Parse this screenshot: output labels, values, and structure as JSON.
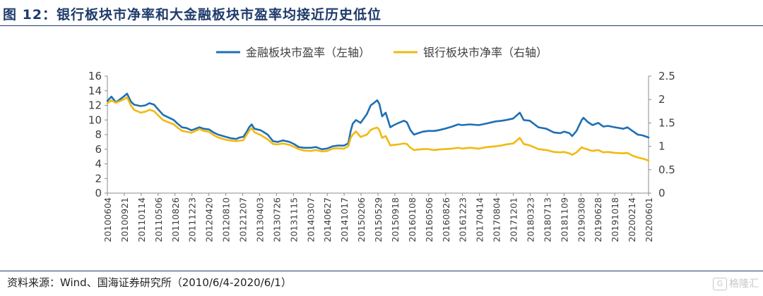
{
  "title": "图 12：银行板块市净率和大金融板块市盈率均接近历史低位",
  "source": "资料来源：Wind、国海证券研究所（2010/6/4-2020/6/1）",
  "watermark": {
    "text": "格隆汇",
    "box": "G"
  },
  "chart_data": {
    "type": "line",
    "legend_position": "top-center",
    "grid": false,
    "y_left": {
      "range": [
        0,
        16
      ],
      "ticks": [
        0,
        2,
        4,
        6,
        8,
        10,
        12,
        14,
        16
      ]
    },
    "y_right": {
      "range": [
        0,
        2.5
      ],
      "ticks": [
        "0",
        "0.5",
        "1",
        "1.5",
        "2",
        "2.5"
      ]
    },
    "x_tick_labels": [
      "20100604",
      "20100921",
      "20110114",
      "20110506",
      "20110826",
      "20111223",
      "20120420",
      "20120810",
      "20121207",
      "20130403",
      "20130726",
      "20131115",
      "20140307",
      "20140627",
      "20141017",
      "20150206",
      "20150529",
      "20150918",
      "20160108",
      "20160506",
      "20160826",
      "20161223",
      "20170414",
      "20170804",
      "20171201",
      "20180323",
      "20180713",
      "20181109",
      "20190308",
      "20190628",
      "20191018",
      "20200214",
      "20200601"
    ],
    "series": [
      {
        "name": "金融板块市盈率（左轴）",
        "axis": "left",
        "color": "#1f6fb5",
        "points": [
          [
            "20100604",
            12.6
          ],
          [
            "20100701",
            13.2
          ],
          [
            "20100801",
            12.4
          ],
          [
            "20100921",
            13.2
          ],
          [
            "20101015",
            13.6
          ],
          [
            "20101110",
            12.5
          ],
          [
            "20101201",
            12.1
          ],
          [
            "20110114",
            11.9
          ],
          [
            "20110215",
            12.0
          ],
          [
            "20110315",
            12.3
          ],
          [
            "20110415",
            12.1
          ],
          [
            "20110506",
            11.6
          ],
          [
            "20110615",
            10.7
          ],
          [
            "20110715",
            10.4
          ],
          [
            "20110826",
            10.0
          ],
          [
            "20110920",
            9.5
          ],
          [
            "20111020",
            9.0
          ],
          [
            "20111120",
            8.9
          ],
          [
            "20111223",
            8.6
          ],
          [
            "20120120",
            8.8
          ],
          [
            "20120215",
            9.0
          ],
          [
            "20120315",
            8.8
          ],
          [
            "20120420",
            8.7
          ],
          [
            "20120520",
            8.3
          ],
          [
            "20120620",
            8.0
          ],
          [
            "20120810",
            7.7
          ],
          [
            "20120915",
            7.5
          ],
          [
            "20121020",
            7.4
          ],
          [
            "20121110",
            7.6
          ],
          [
            "20121207",
            7.7
          ],
          [
            "20121230",
            8.4
          ],
          [
            "20130115",
            9.0
          ],
          [
            "20130201",
            9.4
          ],
          [
            "20130220",
            8.8
          ],
          [
            "20130403",
            8.6
          ],
          [
            "20130520",
            8.0
          ],
          [
            "20130625",
            7.1
          ],
          [
            "20130726",
            7.0
          ],
          [
            "20130901",
            7.2
          ],
          [
            "20131015",
            7.0
          ],
          [
            "20131115",
            6.7
          ],
          [
            "20131215",
            6.3
          ],
          [
            "20140120",
            6.2
          ],
          [
            "20140307",
            6.2
          ],
          [
            "20140410",
            6.3
          ],
          [
            "20140520",
            6.0
          ],
          [
            "20140627",
            6.1
          ],
          [
            "20140801",
            6.4
          ],
          [
            "20140901",
            6.5
          ],
          [
            "20141017",
            6.5
          ],
          [
            "20141115",
            6.8
          ],
          [
            "20141201",
            8.5
          ],
          [
            "20141215",
            9.5
          ],
          [
            "20150106",
            10.0
          ],
          [
            "20150206",
            9.6
          ],
          [
            "20150320",
            10.8
          ],
          [
            "20150415",
            12.0
          ],
          [
            "20150505",
            12.3
          ],
          [
            "20150529",
            12.7
          ],
          [
            "20150612",
            12.2
          ],
          [
            "20150701",
            10.5
          ],
          [
            "20150725",
            11.0
          ],
          [
            "20150825",
            9.0
          ],
          [
            "20150918",
            9.3
          ],
          [
            "20151020",
            9.6
          ],
          [
            "20151125",
            9.9
          ],
          [
            "20151215",
            9.7
          ],
          [
            "20160108",
            8.6
          ],
          [
            "20160201",
            8.0
          ],
          [
            "20160301",
            8.2
          ],
          [
            "20160401",
            8.4
          ],
          [
            "20160506",
            8.5
          ],
          [
            "20160615",
            8.5
          ],
          [
            "20160715",
            8.6
          ],
          [
            "20160826",
            8.8
          ],
          [
            "20161015",
            9.1
          ],
          [
            "20161125",
            9.4
          ],
          [
            "20161223",
            9.3
          ],
          [
            "20170210",
            9.4
          ],
          [
            "20170414",
            9.3
          ],
          [
            "20170601",
            9.5
          ],
          [
            "20170804",
            9.8
          ],
          [
            "20170915",
            9.9
          ],
          [
            "20171015",
            10.0
          ],
          [
            "20171201",
            10.2
          ],
          [
            "20180115",
            11.0
          ],
          [
            "20180210",
            10.0
          ],
          [
            "20180323",
            9.9
          ],
          [
            "20180520",
            9.0
          ],
          [
            "20180713",
            8.8
          ],
          [
            "20180901",
            8.3
          ],
          [
            "20181015",
            8.2
          ],
          [
            "20181109",
            8.4
          ],
          [
            "20181215",
            8.2
          ],
          [
            "20190103",
            7.8
          ],
          [
            "20190201",
            8.5
          ],
          [
            "20190308",
            10.0
          ],
          [
            "20190320",
            10.3
          ],
          [
            "20190420",
            9.7
          ],
          [
            "20190520",
            9.3
          ],
          [
            "20190628",
            9.6
          ],
          [
            "20190801",
            9.1
          ],
          [
            "20190901",
            9.2
          ],
          [
            "20191018",
            9.0
          ],
          [
            "20191215",
            8.8
          ],
          [
            "20200110",
            9.0
          ],
          [
            "20200214",
            8.5
          ],
          [
            "20200320",
            8.0
          ],
          [
            "20200420",
            7.9
          ],
          [
            "20200520",
            7.7
          ],
          [
            "20200601",
            7.6
          ]
        ]
      },
      {
        "name": "银行板块市净率（右轴）",
        "axis": "right",
        "color": "#f2b90f",
        "points": [
          [
            "20100604",
            1.92
          ],
          [
            "20100701",
            1.98
          ],
          [
            "20100801",
            1.93
          ],
          [
            "20100921",
            2.0
          ],
          [
            "20101015",
            2.05
          ],
          [
            "20101110",
            1.87
          ],
          [
            "20101201",
            1.78
          ],
          [
            "20110114",
            1.72
          ],
          [
            "20110215",
            1.74
          ],
          [
            "20110315",
            1.78
          ],
          [
            "20110415",
            1.75
          ],
          [
            "20110506",
            1.68
          ],
          [
            "20110615",
            1.56
          ],
          [
            "20110715",
            1.52
          ],
          [
            "20110826",
            1.47
          ],
          [
            "20110920",
            1.4
          ],
          [
            "20111020",
            1.33
          ],
          [
            "20111120",
            1.31
          ],
          [
            "20111223",
            1.29
          ],
          [
            "20120120",
            1.33
          ],
          [
            "20120215",
            1.37
          ],
          [
            "20120315",
            1.33
          ],
          [
            "20120420",
            1.31
          ],
          [
            "20120520",
            1.24
          ],
          [
            "20120620",
            1.19
          ],
          [
            "20120810",
            1.14
          ],
          [
            "20120915",
            1.12
          ],
          [
            "20121020",
            1.11
          ],
          [
            "20121110",
            1.12
          ],
          [
            "20121207",
            1.13
          ],
          [
            "20121230",
            1.25
          ],
          [
            "20130115",
            1.33
          ],
          [
            "20130201",
            1.39
          ],
          [
            "20130220",
            1.3
          ],
          [
            "20130403",
            1.24
          ],
          [
            "20130520",
            1.15
          ],
          [
            "20130625",
            1.05
          ],
          [
            "20130726",
            1.04
          ],
          [
            "20130901",
            1.06
          ],
          [
            "20131015",
            1.03
          ],
          [
            "20131115",
            0.99
          ],
          [
            "20131215",
            0.94
          ],
          [
            "20140120",
            0.91
          ],
          [
            "20140307",
            0.9
          ],
          [
            "20140410",
            0.92
          ],
          [
            "20140520",
            0.89
          ],
          [
            "20140627",
            0.9
          ],
          [
            "20140801",
            0.95
          ],
          [
            "20140901",
            0.96
          ],
          [
            "20141017",
            0.95
          ],
          [
            "20141115",
            1.0
          ],
          [
            "20141201",
            1.18
          ],
          [
            "20141215",
            1.25
          ],
          [
            "20150106",
            1.32
          ],
          [
            "20150206",
            1.2
          ],
          [
            "20150320",
            1.25
          ],
          [
            "20150415",
            1.35
          ],
          [
            "20150505",
            1.38
          ],
          [
            "20150529",
            1.4
          ],
          [
            "20150612",
            1.35
          ],
          [
            "20150701",
            1.18
          ],
          [
            "20150725",
            1.22
          ],
          [
            "20150825",
            1.02
          ],
          [
            "20150918",
            1.03
          ],
          [
            "20151020",
            1.04
          ],
          [
            "20151125",
            1.06
          ],
          [
            "20151215",
            1.05
          ],
          [
            "20160108",
            0.97
          ],
          [
            "20160201",
            0.92
          ],
          [
            "20160301",
            0.93
          ],
          [
            "20160401",
            0.94
          ],
          [
            "20160506",
            0.94
          ],
          [
            "20160615",
            0.92
          ],
          [
            "20160715",
            0.93
          ],
          [
            "20160826",
            0.94
          ],
          [
            "20161015",
            0.95
          ],
          [
            "20161125",
            0.97
          ],
          [
            "20161223",
            0.95
          ],
          [
            "20170210",
            0.97
          ],
          [
            "20170414",
            0.95
          ],
          [
            "20170601",
            0.98
          ],
          [
            "20170804",
            1.0
          ],
          [
            "20170915",
            1.02
          ],
          [
            "20171015",
            1.04
          ],
          [
            "20171201",
            1.06
          ],
          [
            "20180115",
            1.18
          ],
          [
            "20180210",
            1.05
          ],
          [
            "20180323",
            1.02
          ],
          [
            "20180520",
            0.94
          ],
          [
            "20180713",
            0.92
          ],
          [
            "20180901",
            0.88
          ],
          [
            "20181015",
            0.87
          ],
          [
            "20181109",
            0.88
          ],
          [
            "20181215",
            0.85
          ],
          [
            "20190103",
            0.82
          ],
          [
            "20190201",
            0.87
          ],
          [
            "20190308",
            0.98
          ],
          [
            "20190320",
            0.96
          ],
          [
            "20190420",
            0.93
          ],
          [
            "20190520",
            0.9
          ],
          [
            "20190628",
            0.92
          ],
          [
            "20190801",
            0.87
          ],
          [
            "20190901",
            0.88
          ],
          [
            "20191018",
            0.86
          ],
          [
            "20191215",
            0.85
          ],
          [
            "20200110",
            0.86
          ],
          [
            "20200214",
            0.8
          ],
          [
            "20200320",
            0.76
          ],
          [
            "20200420",
            0.74
          ],
          [
            "20200520",
            0.71
          ],
          [
            "20200601",
            0.69
          ]
        ]
      }
    ]
  }
}
